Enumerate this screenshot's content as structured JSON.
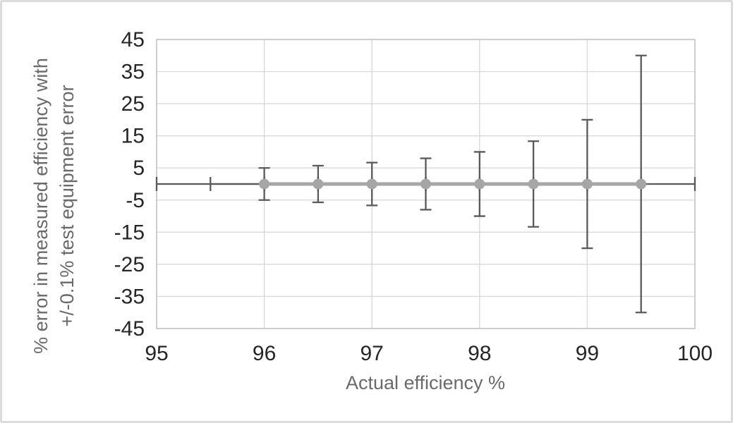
{
  "chart_data": {
    "type": "scatter",
    "title": "",
    "xlabel": "Actual efficiency %",
    "ylabel_lines": [
      "% error in measured efficiency with",
      "+/-0.1% test equipment error"
    ],
    "xlim": [
      95,
      100
    ],
    "ylim": [
      -45,
      45
    ],
    "x_ticks": [
      95,
      96,
      97,
      98,
      99,
      100
    ],
    "y_ticks": [
      45,
      35,
      25,
      15,
      5,
      -5,
      -15,
      -25,
      -35,
      -45
    ],
    "grid": true,
    "legend": "none",
    "series": [
      {
        "name": "% error in measured efficiency",
        "marker": "circle",
        "x_error": 0.5,
        "points": [
          {
            "x": 95.5,
            "y": 0,
            "y_error": null,
            "marker": false
          },
          {
            "x": 96.0,
            "y": 0,
            "y_error": 5.0
          },
          {
            "x": 96.5,
            "y": 0,
            "y_error": 5.71
          },
          {
            "x": 97.0,
            "y": 0,
            "y_error": 6.67
          },
          {
            "x": 97.5,
            "y": 0,
            "y_error": 8.0
          },
          {
            "x": 98.0,
            "y": 0,
            "y_error": 10.0
          },
          {
            "x": 98.5,
            "y": 0,
            "y_error": 13.33
          },
          {
            "x": 99.0,
            "y": 0,
            "y_error": 20.0
          },
          {
            "x": 99.5,
            "y": 0,
            "y_error": 40.0
          }
        ]
      }
    ],
    "style": {
      "marker_color": "#a6a6a6",
      "series_line_color": "#a6a6a6",
      "error_bar_color": "#595959",
      "gridline_color": "#d9d9d9",
      "plot_border_color": "#c6c6c6",
      "tick_label_color": "#262626",
      "axis_title_color": "#6a6a6a",
      "background_color": "#ffffff"
    }
  }
}
